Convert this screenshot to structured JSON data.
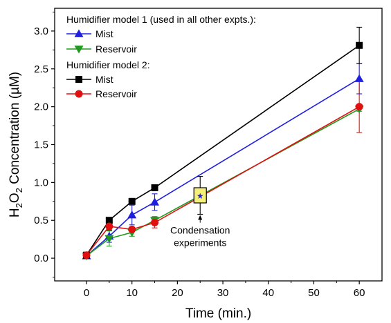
{
  "chart_data": {
    "type": "line",
    "title": "",
    "xlabel": "Time (min.)",
    "ylabel_prefix": "H",
    "ylabel_sub1": "2",
    "ylabel_mid": "O",
    "ylabel_sub2": "2",
    "ylabel_suffix": " Concentration (µM)",
    "xlim": [
      -7,
      65
    ],
    "ylim": [
      -0.3,
      3.3
    ],
    "x_ticks": [
      0,
      10,
      20,
      30,
      40,
      50,
      60
    ],
    "x_tick_labels": [
      "0",
      "10",
      "20",
      "30",
      "40",
      "50",
      "60"
    ],
    "y_ticks": [
      0.0,
      0.5,
      1.0,
      1.5,
      2.0,
      2.5,
      3.0
    ],
    "y_tick_labels": [
      "0.0",
      "0.5",
      "1.0",
      "1.5",
      "2.0",
      "2.5",
      "3.0"
    ],
    "grid": false,
    "legend_position": "top-left",
    "legend_groups": [
      {
        "heading": "Humidifier model 1 (used in all other expts.):",
        "series_index": [
          0,
          1
        ]
      },
      {
        "heading": "Humidifier model 2:",
        "series_index": [
          2,
          3
        ]
      }
    ],
    "series": [
      {
        "name": "Mist",
        "color": "#1f1fe0",
        "marker": "triangle-up",
        "x": [
          0,
          5,
          10,
          15,
          60
        ],
        "y": [
          0.03,
          0.29,
          0.57,
          0.74,
          2.37
        ],
        "yerr": [
          0.02,
          0.08,
          0.13,
          0.11,
          0.2
        ]
      },
      {
        "name": "Reservoir",
        "color": "#1f9a1f",
        "marker": "triangle-down",
        "x": [
          0,
          5,
          10,
          15,
          60
        ],
        "y": [
          0.03,
          0.26,
          0.34,
          0.5,
          1.97
        ],
        "yerr": [
          0.02,
          0.1,
          0.05,
          0.05,
          0.03
        ]
      },
      {
        "name": "Mist",
        "color": "#000000",
        "marker": "square",
        "x": [
          0,
          5,
          10,
          15,
          60
        ],
        "y": [
          0.04,
          0.5,
          0.75,
          0.93,
          2.81
        ],
        "yerr": [
          0.01,
          0.03,
          0.02,
          0.02,
          0.24
        ]
      },
      {
        "name": "Reservoir",
        "color": "#e01010",
        "marker": "circle",
        "x": [
          0,
          5,
          10,
          15,
          60
        ],
        "y": [
          0.04,
          0.42,
          0.38,
          0.47,
          2.0
        ],
        "yerr": [
          0.02,
          0.04,
          0.03,
          0.07,
          0.34
        ]
      }
    ],
    "highlight_point": {
      "x": 25,
      "y": 0.83,
      "yerr": 0.25,
      "fill": "#f5f07a",
      "stroke": "#000000",
      "star_color": "#1f1fe0"
    },
    "annotation": {
      "lines": [
        "Condensation",
        "experiments"
      ],
      "x": 25,
      "y": 0.45,
      "arrow_to_y": 0.57
    }
  }
}
